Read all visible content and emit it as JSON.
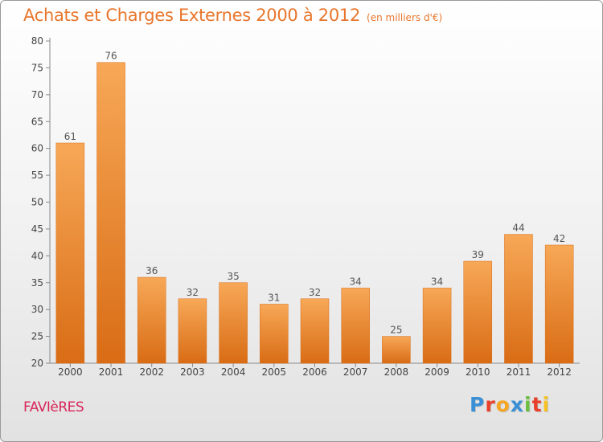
{
  "header": {
    "title": "Achats et Charges Externes 2000 à 2012",
    "subtitle": "(en milliers d'€)"
  },
  "footer": {
    "commune": "FAVIèRES",
    "logo_text": "Proxiti",
    "logo_colors": [
      "#3a8fd6",
      "#e8402a",
      "#f5a623",
      "#3a8fd6",
      "#6cbf3e",
      "#e8402a",
      "#f5c323"
    ]
  },
  "chart_data": {
    "type": "bar",
    "title": "Achats et Charges Externes 2000 à 2012",
    "subtitle": "(en milliers d'€)",
    "categories": [
      "2000",
      "2001",
      "2002",
      "2003",
      "2004",
      "2005",
      "2006",
      "2007",
      "2008",
      "2009",
      "2010",
      "2011",
      "2012"
    ],
    "values": [
      61,
      76,
      36,
      32,
      35,
      31,
      32,
      34,
      25,
      34,
      39,
      44,
      42
    ],
    "ylim": [
      20,
      80
    ],
    "yticks": [
      20,
      25,
      30,
      35,
      40,
      45,
      50,
      55,
      60,
      65,
      70,
      75,
      80
    ],
    "grid": false,
    "data_labels": true,
    "colors": {
      "bar_light": "#f7a857",
      "bar_dark": "#d96c15",
      "label": "#555555",
      "axis": "#888888",
      "tick_label": "#444444"
    }
  }
}
